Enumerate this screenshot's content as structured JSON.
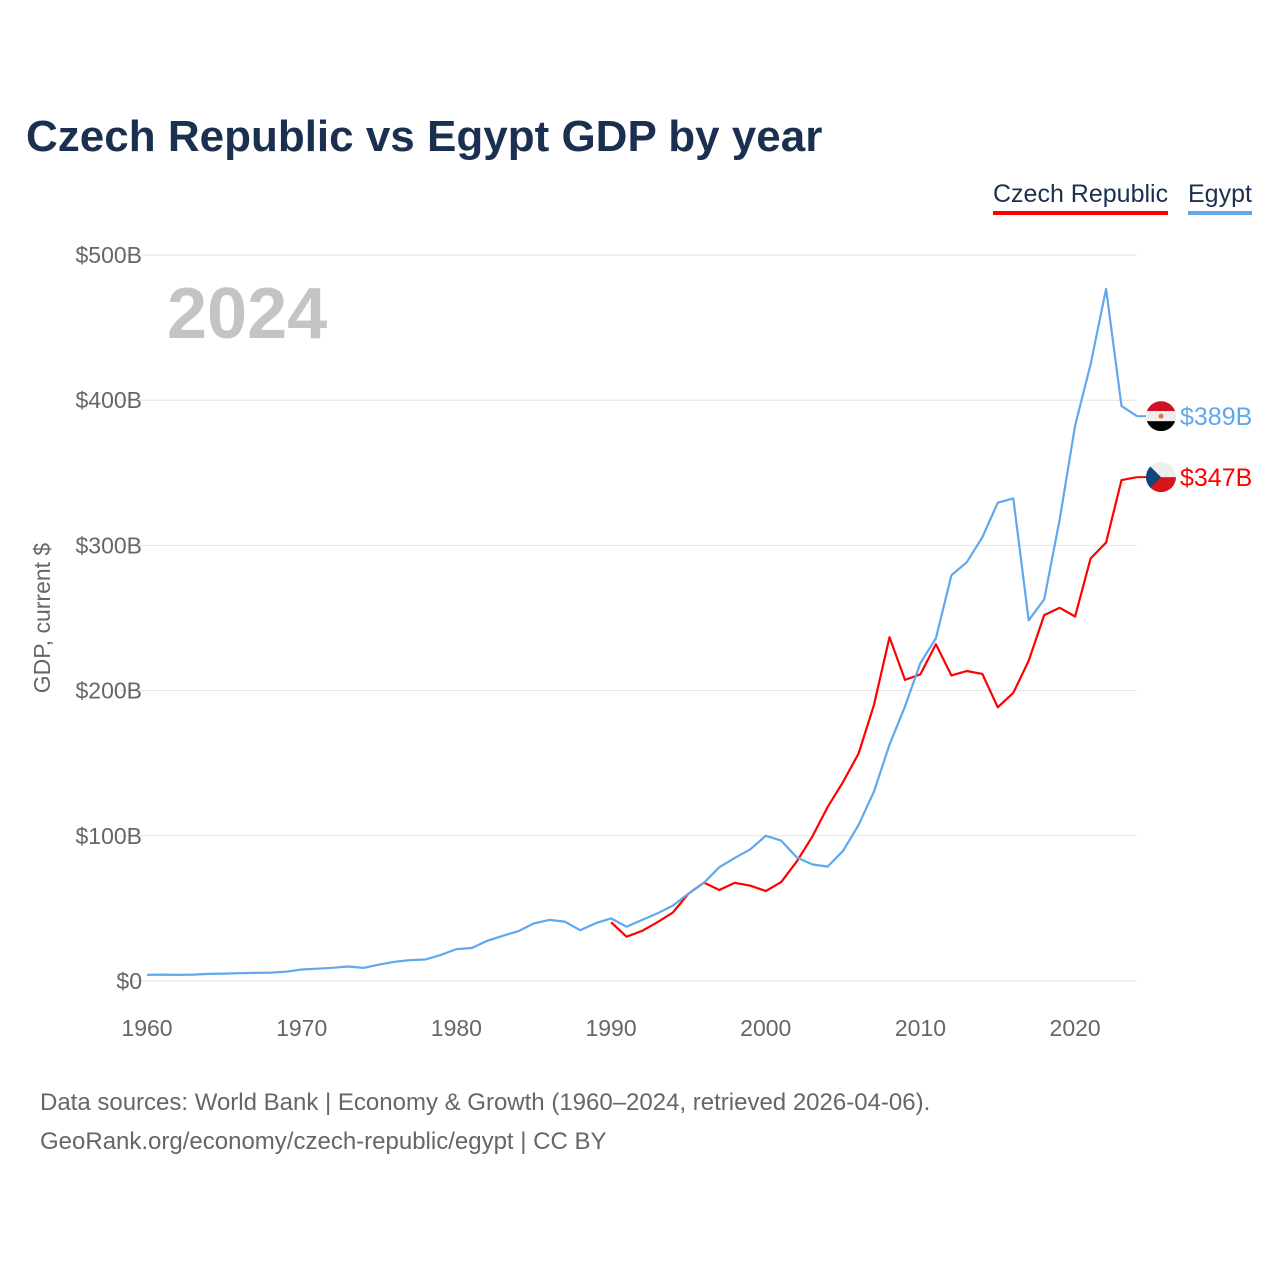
{
  "chart_data": {
    "type": "line",
    "title": "Czech Republic vs Egypt GDP by year",
    "ylabel": "GDP, current $",
    "xlabel": "",
    "xlim": [
      1960,
      2024
    ],
    "ylim": [
      0,
      500
    ],
    "x_ticks": [
      "1960",
      "1970",
      "1980",
      "1990",
      "2000",
      "2010",
      "2020"
    ],
    "y_ticks": [
      "$0",
      "$100B",
      "$200B",
      "$300B",
      "$400B",
      "$500B"
    ],
    "year_watermark": "2024",
    "legend": [
      "Czech Republic",
      "Egypt"
    ],
    "legend_position": "top-right",
    "grid": true,
    "series": [
      {
        "name": "Czech Republic",
        "color": "#ff0000",
        "start_year": 1990,
        "end_label": "$347B",
        "flag": "czech-flag",
        "values": [
          40.5,
          30.5,
          34.5,
          40.5,
          47.2,
          60.1,
          67.8,
          62.7,
          67.6,
          65.6,
          62.0,
          68.1,
          82.2,
          99.3,
          119.8,
          137.1,
          156.7,
          190.2,
          236.8,
          207.4,
          211.2,
          231.9,
          210.5,
          213.5,
          211.5,
          188.5,
          198.5,
          220.5,
          252,
          257,
          251,
          291,
          302,
          345,
          347
        ]
      },
      {
        "name": "Egypt",
        "color": "#5fa8ee",
        "start_year": 1960,
        "end_label": "$389B",
        "flag": "egypt-flag",
        "values": [
          4.2,
          4.4,
          4.2,
          4.4,
          4.9,
          5.1,
          5.4,
          5.6,
          5.8,
          6.4,
          7.9,
          8.5,
          9.1,
          10.0,
          9.0,
          11.3,
          13.2,
          14.4,
          14.8,
          18.0,
          22.0,
          22.7,
          27.7,
          31.1,
          34.3,
          39.6,
          42.1,
          40.9,
          35.0,
          39.8,
          43.1,
          37.4,
          42.0,
          46.6,
          51.9,
          60.2,
          67.6,
          78.4,
          84.8,
          90.7,
          100.0,
          96.7,
          85.1,
          80.3,
          78.8,
          89.7,
          107.5,
          130.5,
          162.8,
          189.1,
          219.0,
          236.0,
          279.4,
          288.4,
          305.6,
          329.4,
          332.4,
          248.4,
          262.8,
          317.9,
          382.5,
          424.7,
          476.7,
          396.0,
          389.0
        ]
      }
    ]
  },
  "footer": {
    "line1": "Data sources: World Bank | Economy & Growth (1960–2024, retrieved 2026-04-06).",
    "line2": "GeoRank.org/economy/czech-republic/egypt | CC BY"
  }
}
